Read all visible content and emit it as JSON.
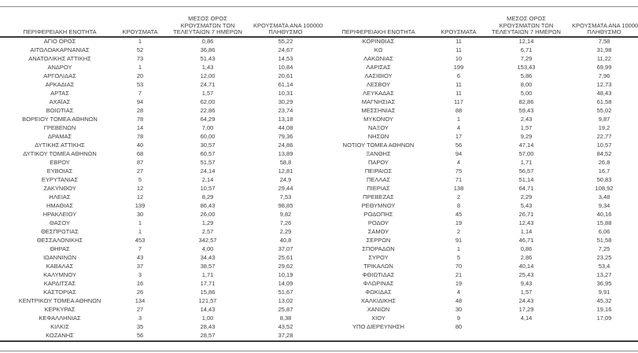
{
  "table": {
    "headers": {
      "region": "ΠΕΡΙΦΕΡΕΙΑΚΗ ΕΝΟΤΗΤΑ",
      "cases": "ΚΡΟΥΣΜΑΤΑ",
      "avg7_line1": "ΜΕΣΟΣ ΟΡΟΣ",
      "avg7_line2": "ΚΡΟΥΣΜΑΤΩΝ ΤΩΝ",
      "avg7_line3": "ΤΕΛΕΥΤΑΙΩΝ 7 ΗΜΕΡΩΝ",
      "per100k_line1": "ΚΡΟΥΣΜΑΤΑ ΑΝΑ 100000",
      "per100k_line2": "ΠΛΗΘΥΣΜΟ"
    },
    "left_rows": [
      [
        "ΑΓΙΟ ΟΡΟΣ",
        "1",
        "0,86",
        "55,22"
      ],
      [
        "ΑΙΤΩΛΟΑΚΑΡΝΑΝΙΑΣ",
        "52",
        "36,86",
        "24,67"
      ],
      [
        "ΑΝΑΤΟΛΙΚΗΣ ΑΤΤΙΚΗΣ",
        "73",
        "51,43",
        "14,53"
      ],
      [
        "ΑΝΔΡΟΥ",
        "1",
        "1,43",
        "10,84"
      ],
      [
        "ΑΡΓΟΛΙΔΑΣ",
        "20",
        "12,00",
        "20,61"
      ],
      [
        "ΑΡΚΑΔΙΑΣ",
        "53",
        "24,71",
        "61,14"
      ],
      [
        "ΑΡΤΑΣ",
        "7",
        "1,57",
        "10,31"
      ],
      [
        "ΑΧΑΪΑΣ",
        "94",
        "62,00",
        "30,29"
      ],
      [
        "ΒΟΙΩΤΙΑΣ",
        "28",
        "22,86",
        "23,74"
      ],
      [
        "ΒΟΡΕΙΟΥ ΤΟΜΕΑ ΑΘΗΝΩΝ",
        "78",
        "64,29",
        "13,18"
      ],
      [
        "ΓΡΕΒΕΝΩΝ",
        "14",
        "7,00",
        "44,08"
      ],
      [
        "ΔΡΑΜΑΣ",
        "78",
        "60,00",
        "79,36"
      ],
      [
        "ΔΥΤΙΚΗΣ ΑΤΤΙΚΗΣ",
        "40",
        "30,57",
        "24,86"
      ],
      [
        "ΔΥΤΙΚΟΥ ΤΟΜΕΑ ΑΘΗΝΩΝ",
        "68",
        "60,57",
        "13,89"
      ],
      [
        "ΕΒΡΟΥ",
        "87",
        "51,57",
        "58,8"
      ],
      [
        "ΕΥΒΟΙΑΣ",
        "27",
        "24,14",
        "12,81"
      ],
      [
        "ΕΥΡΥΤΑΝΙΑΣ",
        "5",
        "2,14",
        "24,9"
      ],
      [
        "ΖΑΚΥΝΘΟΥ",
        "12",
        "10,57",
        "29,44"
      ],
      [
        "ΗΛΕΙΑΣ",
        "12",
        "8,29",
        "7,53"
      ],
      [
        "ΗΜΑΘΙΑΣ",
        "139",
        "86,43",
        "98,85"
      ],
      [
        "ΗΡΑΚΛΕΙΟΥ",
        "30",
        "26,00",
        "9,82"
      ],
      [
        "ΘΑΣΟΥ",
        "1",
        "1,29",
        "7,26"
      ],
      [
        "ΘΕΣΠΡΩΤΙΑΣ",
        "1",
        "2,57",
        "2,29"
      ],
      [
        "ΘΕΣΣΑΛΟΝΙΚΗΣ",
        "453",
        "342,57",
        "40,8"
      ],
      [
        "ΘΗΡΑΣ",
        "7",
        "4,00",
        "37,07"
      ],
      [
        "ΙΩΑΝΝΙΝΩΝ",
        "43",
        "34,43",
        "25,61"
      ],
      [
        "ΚΑΒΑΛΑΣ",
        "37",
        "38,57",
        "29,62"
      ],
      [
        "ΚΑΛΥΜΝΟΥ",
        "3",
        "1,71",
        "10,19"
      ],
      [
        "ΚΑΡΔΙΤΣΑΣ",
        "16",
        "17,71",
        "14,09"
      ],
      [
        "ΚΑΣΤΟΡΙΑΣ",
        "26",
        "15,86",
        "51,67"
      ],
      [
        "ΚΕΝΤΡΙΚΟΥ ΤΟΜΕΑ ΑΘΗΝΩΝ",
        "134",
        "121,57",
        "13,02"
      ],
      [
        "ΚΕΡΚΥΡΑΣ",
        "27",
        "14,43",
        "25,87"
      ],
      [
        "ΚΕΦΑΛΛΗΝΙΑΣ",
        "3",
        "1,00",
        "8,38"
      ],
      [
        "ΚΙΛΚΙΣ",
        "35",
        "28,43",
        "43,52"
      ],
      [
        "ΚΟΖΑΝΗΣ",
        "56",
        "28,57",
        "37,28"
      ]
    ],
    "right_rows": [
      [
        "ΚΟΡΙΝΘΙΑΣ",
        "11",
        "12,14",
        "7,58"
      ],
      [
        "ΚΩ",
        "11",
        "6,71",
        "31,98"
      ],
      [
        "ΛΑΚΩΝΙΑΣ",
        "10",
        "7,29",
        "11,22"
      ],
      [
        "ΛΑΡΙΣΑΣ",
        "199",
        "153,43",
        "69,99"
      ],
      [
        "ΛΑΣΙΘΙΟΥ",
        "6",
        "5,86",
        "7,96"
      ],
      [
        "ΛΕΣΒΟΥ",
        "11",
        "8,00",
        "12,73"
      ],
      [
        "ΛΕΥΚΑΔΑΣ",
        "11",
        "5,00",
        "48,43"
      ],
      [
        "ΜΑΓΝΗΣΙΑΣ",
        "117",
        "82,86",
        "61,58"
      ],
      [
        "ΜΕΣΣΗΝΙΑΣ",
        "88",
        "59,43",
        "55,02"
      ],
      [
        "ΜΥΚΟΝΟΥ",
        "1",
        "2,43",
        "9,87"
      ],
      [
        "ΝΑΞΟΥ",
        "4",
        "1,57",
        "19,2"
      ],
      [
        "ΝΗΣΩΝ",
        "17",
        "9,29",
        "22,77"
      ],
      [
        "ΝΟΤΙΟΥ ΤΟΜΕΑ ΑΘΗΝΩΝ",
        "56",
        "47,14",
        "10,57"
      ],
      [
        "ΞΑΝΘΗΣ",
        "94",
        "57,00",
        "84,52"
      ],
      [
        "ΠΑΡΟΥ",
        "4",
        "1,71",
        "26,8"
      ],
      [
        "ΠΕΙΡΑΙΩΣ",
        "75",
        "56,57",
        "16,7"
      ],
      [
        "ΠΕΛΛΑΣ",
        "71",
        "51,14",
        "50,83"
      ],
      [
        "ΠΙΕΡΙΑΣ",
        "138",
        "64,71",
        "108,92"
      ],
      [
        "ΠΡΕΒΕΖΑΣ",
        "2",
        "2,29",
        "3,48"
      ],
      [
        "ΡΕΘΥΜΝΟΥ",
        "8",
        "5,43",
        "9,34"
      ],
      [
        "ΡΟΔΟΠΗΣ",
        "45",
        "26,71",
        "40,16"
      ],
      [
        "ΡΟΔΟΥ",
        "19",
        "12,43",
        "15,88"
      ],
      [
        "ΣΑΜΟΥ",
        "2",
        "1,14",
        "6,06"
      ],
      [
        "ΣΕΡΡΩΝ",
        "91",
        "46,71",
        "51,58"
      ],
      [
        "ΣΠΟΡΑΔΩΝ",
        "1",
        "0,86",
        "7,25"
      ],
      [
        "ΣΥΡΟΥ",
        "5",
        "2,86",
        "23,25"
      ],
      [
        "ΤΡΙΚΑΛΩΝ",
        "70",
        "40,14",
        "53,4"
      ],
      [
        "ΦΘΙΩΤΙΔΑΣ",
        "21",
        "25,43",
        "13,27"
      ],
      [
        "ΦΛΩΡΙΝΑΣ",
        "19",
        "9,43",
        "36,95"
      ],
      [
        "ΦΩΚΙΔΑΣ",
        "4",
        "1,57",
        "9,91"
      ],
      [
        "ΧΑΛΚΙΔΙΚΗΣ",
        "48",
        "24,43",
        "45,32"
      ],
      [
        "ΧΑΝΙΩΝ",
        "30",
        "17,29",
        "19,16"
      ],
      [
        "ΧΙΟΥ",
        "9",
        "4,14",
        "17,09"
      ],
      [
        "ΥΠΟ ΔΙΕΡΕΥΝΗΣΗ",
        "80",
        "",
        ""
      ]
    ]
  }
}
